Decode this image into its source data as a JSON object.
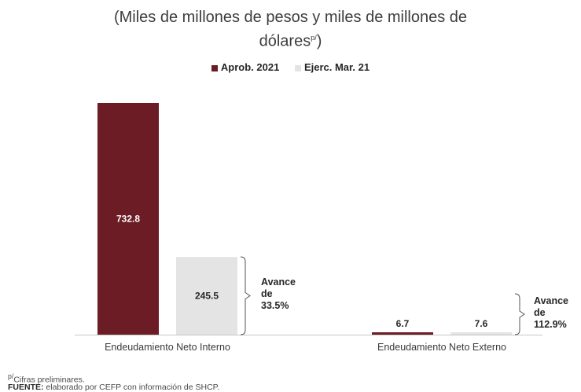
{
  "title_line1": "(Miles de millones de pesos y miles de millones de",
  "title_line2": "dólares",
  "title_sup": "p/",
  "title_close": ")",
  "colors": {
    "aprob": "#6b1c24",
    "ejerc": "#e4e4e4",
    "axis": "#c7c7c7",
    "bracket": "#555555"
  },
  "chart_data": {
    "type": "bar",
    "categories": [
      "Endeudamiento Neto Interno",
      "Endeudamiento Neto Externo"
    ],
    "series": [
      {
        "name": "Aprob. 2021",
        "values": [
          732.8,
          6.7
        ]
      },
      {
        "name": "Ejerc. Mar. 21",
        "values": [
          245.5,
          7.6
        ]
      }
    ],
    "data_labels": [
      [
        "732.8",
        "6.7"
      ],
      [
        "245.5",
        "7.6"
      ]
    ],
    "annotations": [
      {
        "category": "Endeudamiento Neto Interno",
        "lines": [
          "Avance",
          "de",
          "33.5%"
        ]
      },
      {
        "category": "Endeudamiento Neto Externo",
        "lines": [
          "Avance",
          "de",
          "112.9%"
        ]
      }
    ],
    "legend_position": "top-center",
    "grid": false
  },
  "footnote_sup": "p/",
  "footnote_text": "Cifras preliminares.",
  "source_label": "FUENTE:",
  "source_text": " elaborado por CEFP con información de SHCP."
}
